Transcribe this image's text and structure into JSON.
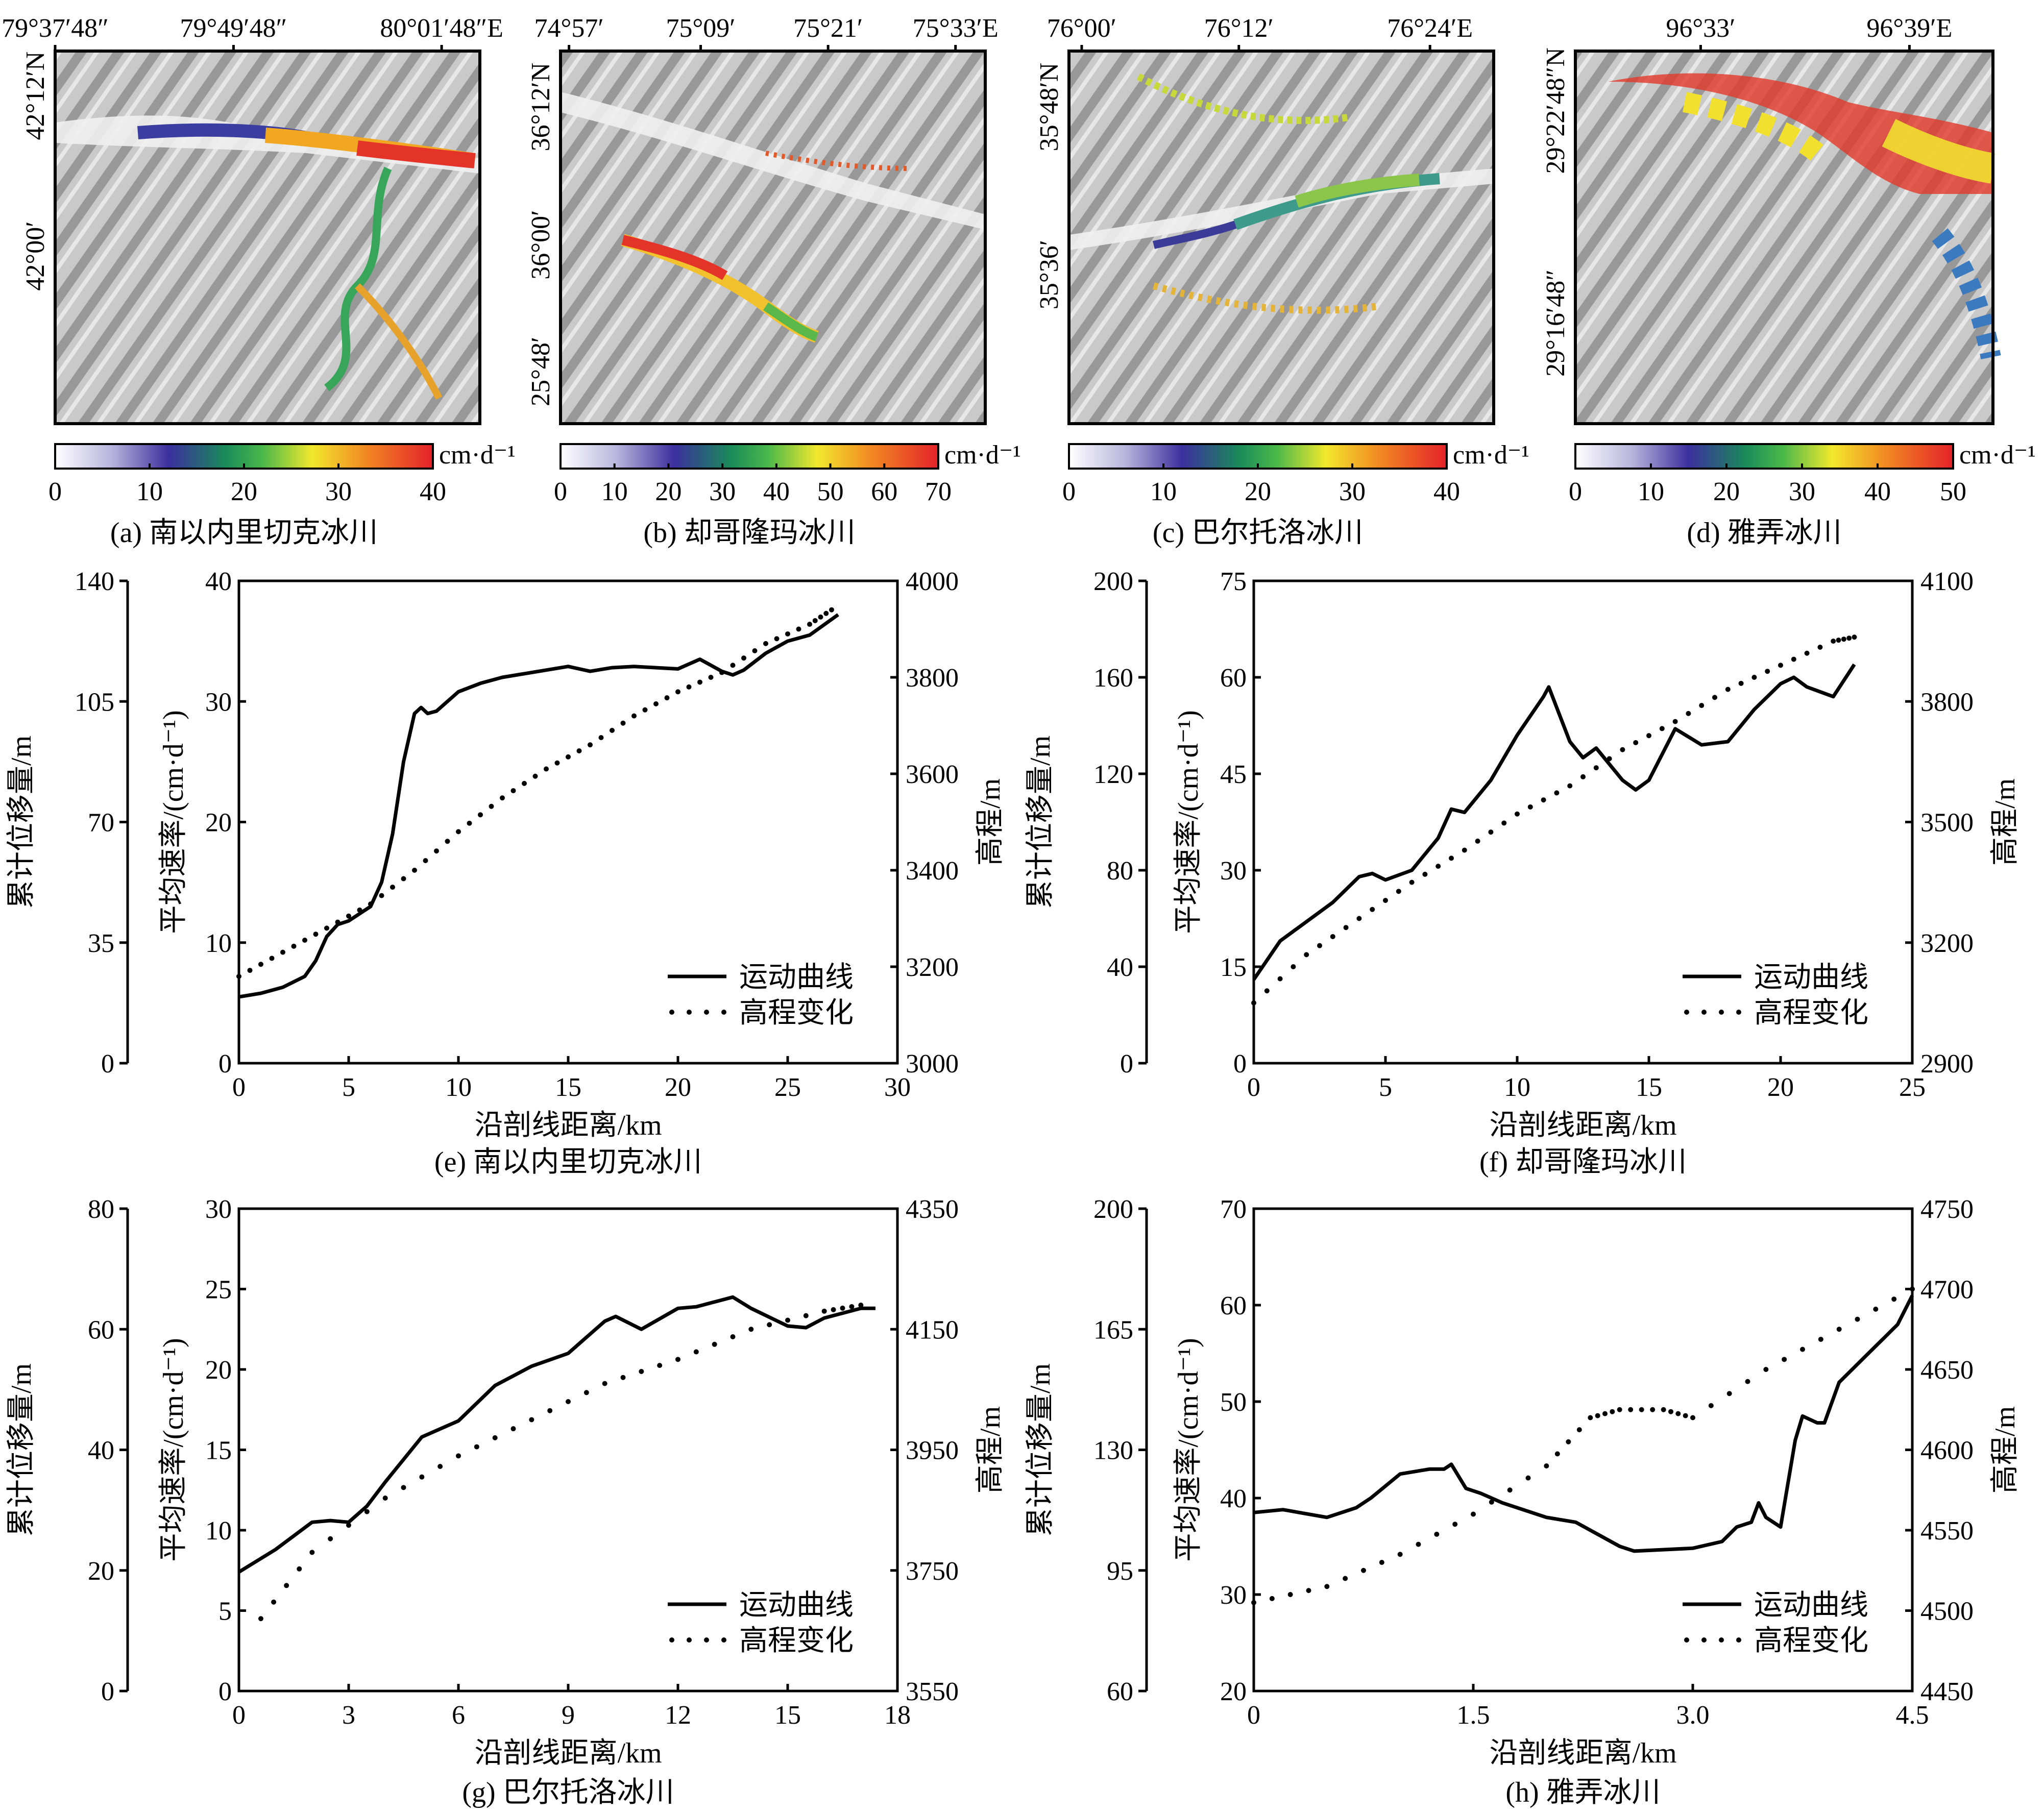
{
  "maps": [
    {
      "caption": "(a) 南以内里切克冰川",
      "top_ticks": [
        "79°37′48″",
        "79°49′48″",
        "80°01′48″E"
      ],
      "left_ticks": [
        "42°12′N",
        "42°00′"
      ],
      "colorbar": {
        "ticks": [
          "0",
          "10",
          "20",
          "30",
          "40"
        ],
        "unit": "cm·d⁻¹",
        "max": 40
      }
    },
    {
      "caption": "(b) 却哥隆玛冰川",
      "top_ticks": [
        "74°57′",
        "75°09′",
        "75°21′",
        "75°33′E"
      ],
      "left_ticks": [
        "36°12′N",
        "36°00′",
        "25°48′"
      ],
      "colorbar": {
        "ticks": [
          "0",
          "10",
          "20",
          "30",
          "40",
          "50",
          "60",
          "70"
        ],
        "unit": "cm·d⁻¹",
        "max": 70
      }
    },
    {
      "caption": "(c) 巴尔托洛冰川",
      "top_ticks": [
        "76°00′",
        "76°12′",
        "76°24′E"
      ],
      "left_ticks": [
        "35°48′N",
        "35°36′"
      ],
      "colorbar": {
        "ticks": [
          "0",
          "10",
          "20",
          "30",
          "40"
        ],
        "unit": "cm·d⁻¹",
        "max": 40
      }
    },
    {
      "caption": "(d) 雅弄冰川",
      "top_ticks": [
        "96°33′",
        "96°39′E"
      ],
      "left_ticks": [
        "29°22′48″N",
        "29°16′48″"
      ],
      "colorbar": {
        "ticks": [
          "0",
          "10",
          "20",
          "30",
          "40",
          "50"
        ],
        "unit": "cm·d⁻¹",
        "max": 50
      }
    }
  ],
  "legend": {
    "motion": "运动曲线",
    "elevation": "高程变化"
  },
  "chart_data": [
    {
      "type": "line",
      "caption": "(e) 南以内里切克冰川",
      "xlabel": "沿剖线距离/km",
      "ylabel_outer": "累计位移量/m",
      "ylabel_inner": "平均速率/(cm·d⁻¹)",
      "ylabel_right": "高程/m",
      "xlim": [
        0,
        30
      ],
      "xticks": [
        0,
        5,
        10,
        15,
        20,
        25,
        30
      ],
      "ylim_outer": [
        0,
        140
      ],
      "yticks_outer": [
        0,
        35,
        70,
        105,
        140
      ],
      "ylim_inner": [
        0,
        40
      ],
      "yticks_inner": [
        0,
        10,
        20,
        30,
        40
      ],
      "ylim_right": [
        3000,
        4000
      ],
      "yticks_right": [
        3000,
        3200,
        3400,
        3600,
        3800,
        4000
      ],
      "series": [
        {
          "name": "运动曲线",
          "axis": "inner",
          "style": "solid",
          "x": [
            0,
            1,
            2,
            3,
            3.5,
            4,
            4.5,
            5,
            6,
            6.5,
            7,
            7.5,
            8,
            8.3,
            8.6,
            9,
            9.5,
            10,
            11,
            12,
            13,
            14,
            15,
            16,
            17,
            18,
            19,
            20,
            21,
            22,
            22.5,
            23,
            24,
            25,
            26,
            27.3
          ],
          "y": [
            5.5,
            5.8,
            6.3,
            7.2,
            8.5,
            10.5,
            11.5,
            11.8,
            13,
            15,
            19,
            25,
            29,
            29.5,
            29,
            29.2,
            30,
            30.8,
            31.5,
            32,
            32.3,
            32.6,
            32.9,
            32.5,
            32.8,
            32.9,
            32.8,
            32.7,
            33.5,
            32.5,
            32.2,
            32.6,
            34,
            35,
            35.5,
            37.2
          ]
        },
        {
          "name": "高程变化",
          "axis": "right",
          "style": "dotted",
          "x": [
            0,
            2,
            4,
            6,
            8,
            10,
            12,
            14,
            16,
            18,
            20,
            22,
            24,
            26,
            27
          ],
          "y": [
            3180,
            3230,
            3280,
            3330,
            3400,
            3480,
            3550,
            3610,
            3660,
            3720,
            3770,
            3810,
            3870,
            3910,
            3940
          ]
        }
      ]
    },
    {
      "type": "line",
      "caption": "(f) 却哥隆玛冰川",
      "xlabel": "沿剖线距离/km",
      "ylabel_outer": "累计位移量/m",
      "ylabel_inner": "平均速率/(cm·d⁻¹)",
      "ylabel_right": "高程/m",
      "xlim": [
        0,
        25
      ],
      "xticks": [
        0,
        5,
        10,
        15,
        20,
        25
      ],
      "ylim_outer": [
        0,
        200
      ],
      "yticks_outer": [
        0,
        40,
        80,
        120,
        160,
        200
      ],
      "ylim_inner": [
        0,
        75
      ],
      "yticks_inner": [
        0,
        15,
        30,
        45,
        60,
        75
      ],
      "ylim_right": [
        2900,
        4100
      ],
      "yticks_right": [
        2900,
        3200,
        3500,
        3800,
        4100
      ],
      "series": [
        {
          "name": "运动曲线",
          "axis": "inner",
          "style": "solid",
          "x": [
            0,
            1,
            2,
            3,
            4,
            4.5,
            5,
            6,
            7,
            7.5,
            8,
            9,
            10,
            11,
            11.2,
            12,
            12.5,
            13,
            14,
            14.5,
            15,
            16,
            17,
            18,
            19,
            20,
            20.5,
            21,
            22,
            22.8
          ],
          "y": [
            13,
            19,
            22,
            25,
            29,
            29.5,
            28.5,
            30,
            35,
            39.5,
            39,
            44,
            51,
            57,
            58.5,
            50,
            47.5,
            49,
            44,
            42.5,
            44,
            52,
            49.5,
            50,
            55,
            59,
            60,
            58.5,
            57,
            62
          ]
        },
        {
          "name": "高程变化",
          "axis": "right",
          "style": "dotted",
          "x": [
            0,
            2,
            4,
            6,
            8,
            10,
            12,
            14,
            16,
            18,
            20,
            22,
            22.8
          ],
          "y": [
            3050,
            3170,
            3260,
            3350,
            3430,
            3520,
            3590,
            3680,
            3750,
            3830,
            3890,
            3950,
            3960
          ]
        }
      ]
    },
    {
      "type": "line",
      "caption": "(g) 巴尔托洛冰川",
      "xlabel": "沿剖线距离/km",
      "ylabel_outer": "累计位移量/m",
      "ylabel_inner": "平均速率/(cm·d⁻¹)",
      "ylabel_right": "高程/m",
      "xlim": [
        0,
        18
      ],
      "xticks": [
        0,
        3,
        6,
        9,
        12,
        15,
        18
      ],
      "ylim_outer": [
        0,
        80
      ],
      "yticks_outer": [
        0,
        20,
        40,
        60,
        80
      ],
      "ylim_inner": [
        0,
        30
      ],
      "yticks_inner": [
        0,
        5,
        10,
        15,
        20,
        25,
        30
      ],
      "ylim_right": [
        3550,
        4350
      ],
      "yticks_right": [
        3550,
        3750,
        3950,
        4150,
        4350
      ],
      "series": [
        {
          "name": "运动曲线",
          "axis": "inner",
          "style": "solid",
          "x": [
            0,
            1,
            2,
            2.5,
            3,
            3.5,
            4,
            5,
            6,
            7,
            8,
            9,
            9.5,
            10,
            10.3,
            11,
            12,
            12.5,
            13,
            13.5,
            14,
            15,
            15.5,
            16,
            17,
            17.4
          ],
          "y": [
            7.4,
            8.8,
            10.5,
            10.6,
            10.5,
            11.5,
            13,
            15.8,
            16.8,
            19,
            20.2,
            21,
            22,
            23,
            23.3,
            22.5,
            23.8,
            23.9,
            24.2,
            24.5,
            23.8,
            22.7,
            22.6,
            23.2,
            23.8,
            23.8
          ]
        },
        {
          "name": "高程变化",
          "axis": "right",
          "style": "dotted",
          "x": [
            0.6,
            2,
            4,
            6,
            8,
            10,
            12,
            14,
            16,
            17
          ],
          "y": [
            3670,
            3780,
            3870,
            3940,
            4000,
            4060,
            4100,
            4150,
            4180,
            4190
          ]
        }
      ]
    },
    {
      "type": "line",
      "caption": "(h) 雅弄冰川",
      "xlabel": "沿剖线距离/km",
      "ylabel_outer": "累计位移量/m",
      "ylabel_inner": "平均速率/(cm·d⁻¹)",
      "ylabel_right": "高程/m",
      "xlim": [
        0,
        4.5
      ],
      "xticks": [
        0,
        1.5,
        3.0,
        4.5
      ],
      "xtick_labels": [
        "0",
        "1.5",
        "3.0",
        "4.5"
      ],
      "ylim_outer": [
        60,
        200
      ],
      "yticks_outer": [
        60,
        95,
        130,
        165,
        200
      ],
      "ylim_inner": [
        20,
        70
      ],
      "yticks_inner": [
        20,
        30,
        40,
        50,
        60,
        70
      ],
      "ylim_right": [
        4450,
        4750
      ],
      "yticks_right": [
        4450,
        4500,
        4550,
        4600,
        4650,
        4700,
        4750
      ],
      "series": [
        {
          "name": "运动曲线",
          "axis": "inner",
          "style": "solid",
          "x": [
            0,
            0.2,
            0.5,
            0.7,
            0.8,
            1.0,
            1.2,
            1.3,
            1.35,
            1.45,
            1.55,
            1.7,
            2.0,
            2.2,
            2.5,
            2.6,
            3.0,
            3.2,
            3.3,
            3.4,
            3.45,
            3.5,
            3.6,
            3.7,
            3.75,
            3.85,
            3.9,
            4.0,
            4.2,
            4.3,
            4.4,
            4.5
          ],
          "y": [
            38.5,
            38.8,
            38,
            39,
            40,
            42.5,
            43,
            43,
            43.5,
            41,
            40.5,
            39.5,
            38,
            37.5,
            35,
            34.5,
            34.8,
            35.5,
            37,
            37.5,
            39.5,
            38,
            37,
            46,
            48.5,
            47.8,
            47.8,
            52,
            55,
            56.5,
            58,
            61
          ]
        },
        {
          "name": "高程变化",
          "axis": "right",
          "style": "dotted",
          "x": [
            0,
            0.5,
            1.0,
            1.5,
            2.0,
            2.3,
            2.5,
            2.8,
            3.0,
            3.5,
            4.0,
            4.5
          ],
          "y": [
            4505,
            4515,
            4535,
            4560,
            4590,
            4620,
            4625,
            4625,
            4620,
            4650,
            4675,
            4700
          ]
        }
      ]
    }
  ]
}
